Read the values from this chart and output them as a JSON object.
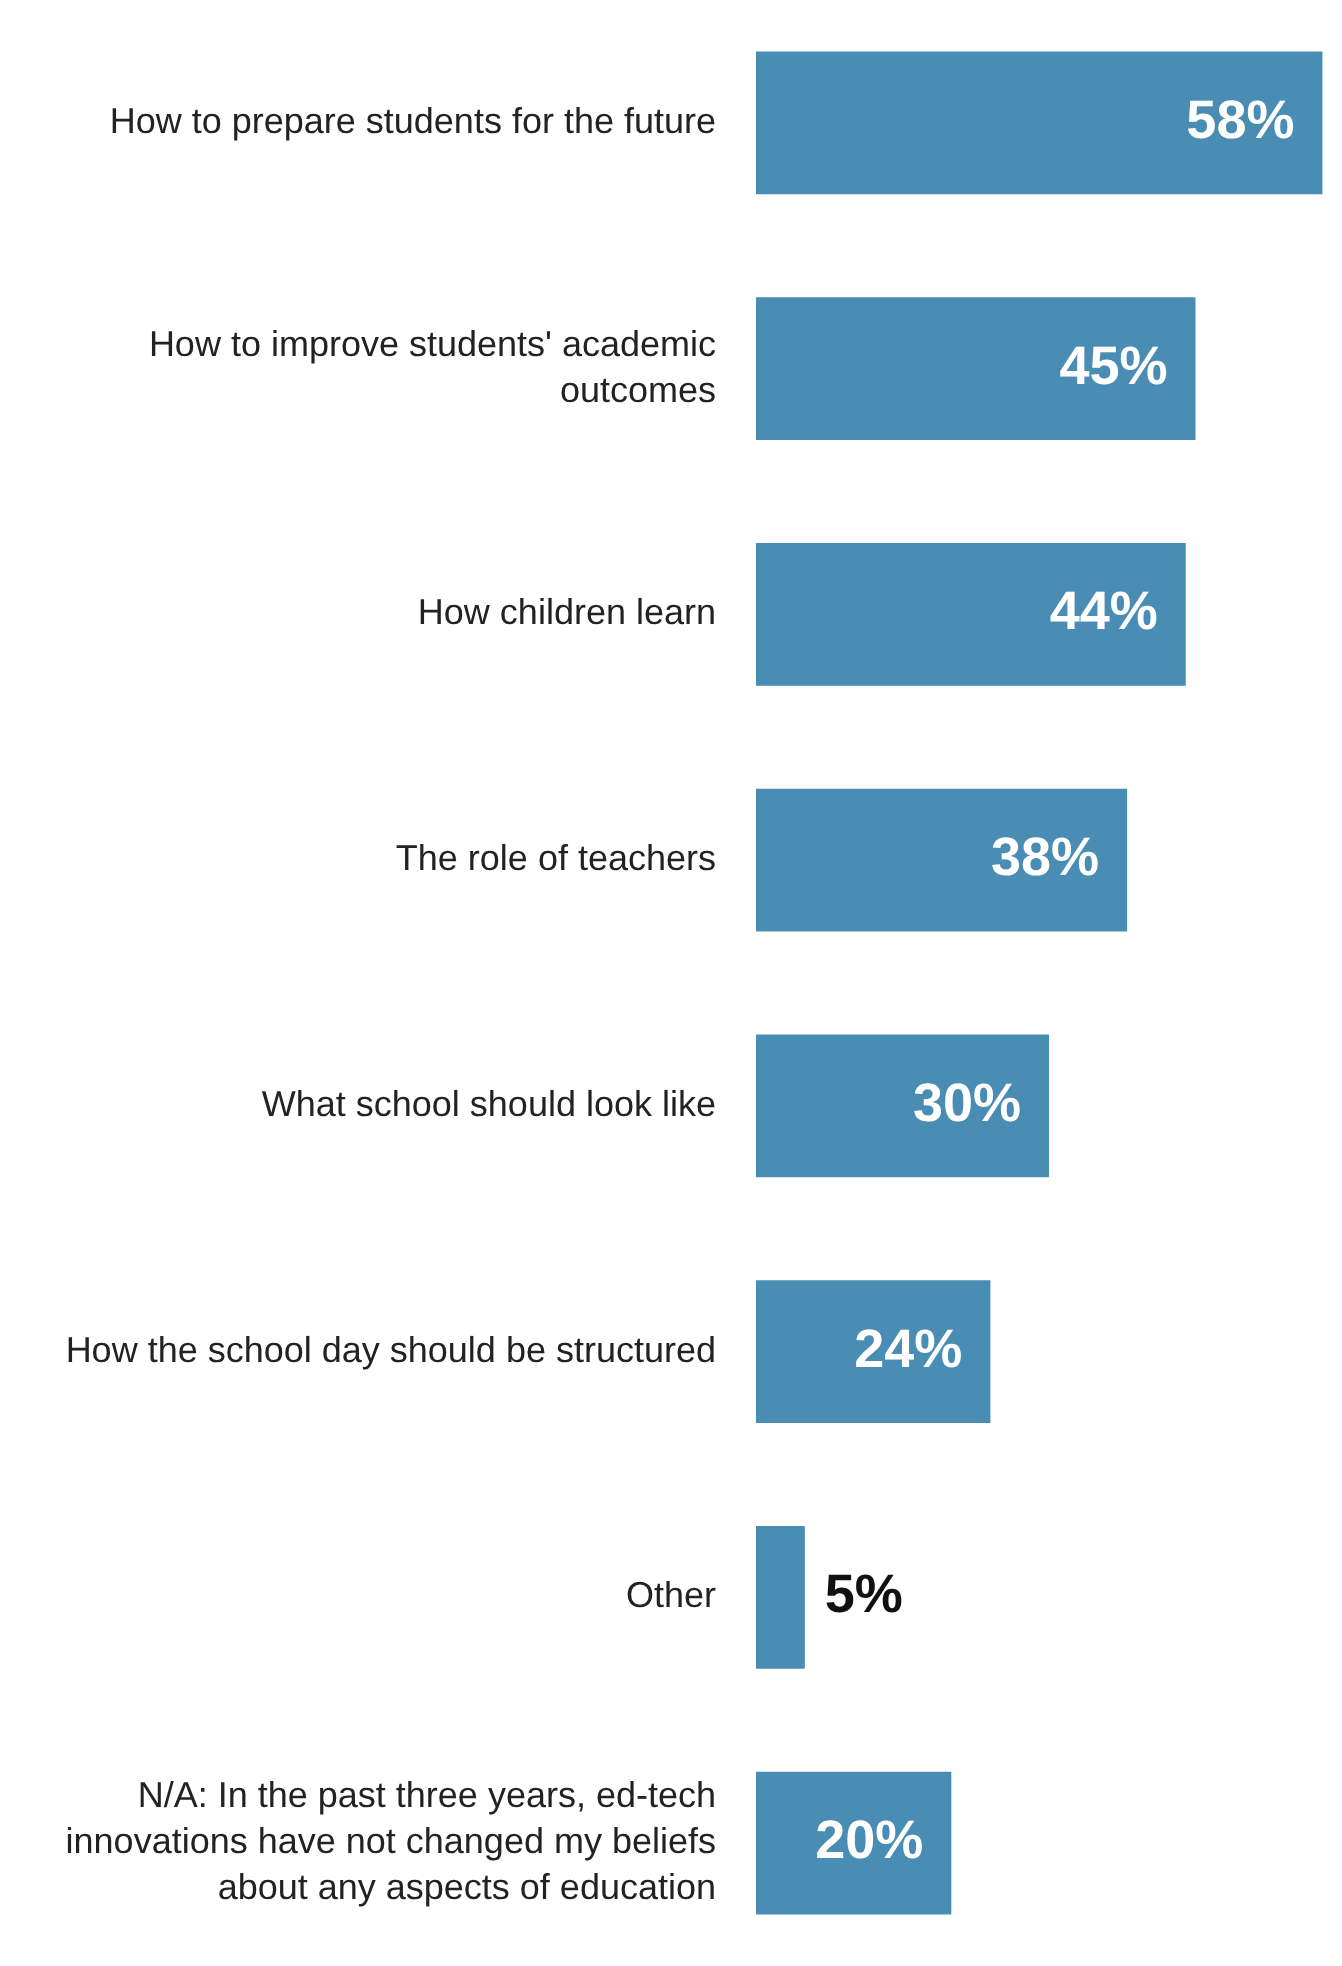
{
  "chart_data": {
    "type": "bar",
    "orientation": "horizontal",
    "categories": [
      "How to prepare students for the future",
      "How to improve students' academic outcomes",
      "How children learn",
      "The role of teachers",
      "What school should look like",
      "How the school day should be structured",
      "Other",
      "N/A: In the past three years, ed-tech innovations have not changed my beliefs about any aspects of education"
    ],
    "values": [
      58,
      45,
      44,
      38,
      30,
      24,
      5,
      20
    ],
    "value_labels": [
      "58%",
      "45%",
      "44%",
      "38%",
      "30%",
      "24%",
      "5%",
      "20%"
    ],
    "color": "#4a8db4"
  }
}
